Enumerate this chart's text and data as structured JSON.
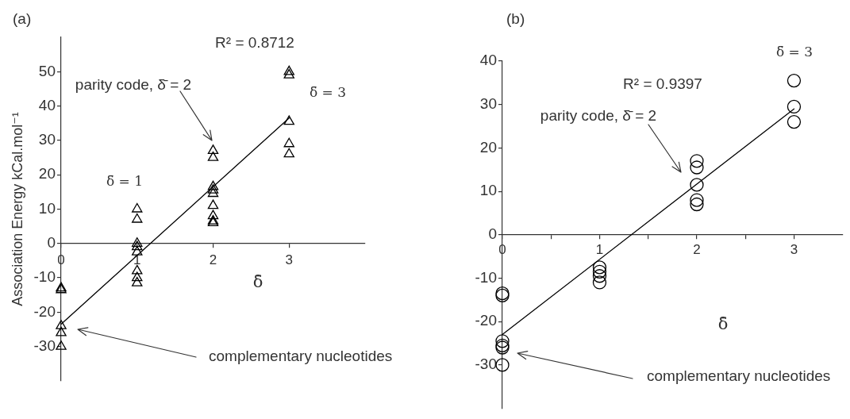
{
  "chart_data": [
    {
      "type": "scatter",
      "title": "(a)",
      "xlabel": "δ̄",
      "ylabel": "Association Energy kCal.mol⁻¹",
      "marker": "triangle",
      "xlim": [
        0,
        4
      ],
      "xticks": [
        0,
        1,
        2,
        3
      ],
      "ylim": [
        -40,
        60
      ],
      "yticks": [
        -30,
        -20,
        -10,
        0,
        10,
        20,
        30,
        40,
        50
      ],
      "series": [
        {
          "type": "scatter",
          "color": "#000000",
          "x": [
            0,
            0,
            0,
            0,
            0,
            1,
            1,
            1,
            1,
            1,
            1,
            1,
            1,
            2,
            2,
            2,
            2,
            2,
            2,
            2,
            2,
            2,
            3,
            3,
            3,
            3,
            3
          ],
          "values": [
            -13,
            -13.5,
            -24,
            -26,
            -30,
            10,
            7,
            0,
            -1,
            -2.5,
            -8,
            -10,
            -11.5,
            27,
            25,
            16.5,
            15.5,
            14.5,
            11,
            8,
            6.5,
            6,
            50,
            49,
            35.5,
            29,
            26
          ]
        },
        {
          "type": "line",
          "marker": "none",
          "color": "#000000",
          "x": [
            0,
            3
          ],
          "values": [
            -23.5,
            36.5
          ]
        }
      ],
      "annotations": [
        "R² = 0.8712",
        "parity code, δ̄ = 2",
        "δ̄ = 1",
        "δ̄ = 3",
        "complementary nucleotides"
      ]
    },
    {
      "type": "scatter",
      "title": "(b)",
      "xlabel": "δ̄",
      "marker": "circle",
      "xlim": [
        0,
        3.5
      ],
      "xticks": [
        0,
        {
          "value": 0.5,
          "label": null
        },
        1,
        {
          "value": 1.5,
          "label": null
        },
        2,
        {
          "value": 2.5,
          "label": null
        },
        3
      ],
      "ylim": [
        -40,
        40
      ],
      "yticks": [
        -30,
        -20,
        -10,
        0,
        10,
        20,
        30,
        40
      ],
      "series": [
        {
          "type": "scatter",
          "color": "#000000",
          "x": [
            0,
            0,
            0,
            0,
            0,
            0,
            1,
            1,
            1,
            1,
            2,
            2,
            2,
            2,
            2,
            3,
            3,
            3
          ],
          "values": [
            -13.5,
            -14,
            -24.5,
            -25.5,
            -26,
            -30,
            -7.5,
            -8.5,
            -9.5,
            -11,
            17,
            15.5,
            11.5,
            8,
            7,
            35.5,
            29.5,
            26
          ]
        },
        {
          "type": "line",
          "marker": "none",
          "color": "#000000",
          "x": [
            0,
            3
          ],
          "values": [
            -23,
            29
          ]
        }
      ],
      "annotations": [
        "R² = 0.9397",
        "parity code, δ̄ = 2",
        "δ̄ = 3",
        "complementary nucleotides"
      ]
    }
  ]
}
